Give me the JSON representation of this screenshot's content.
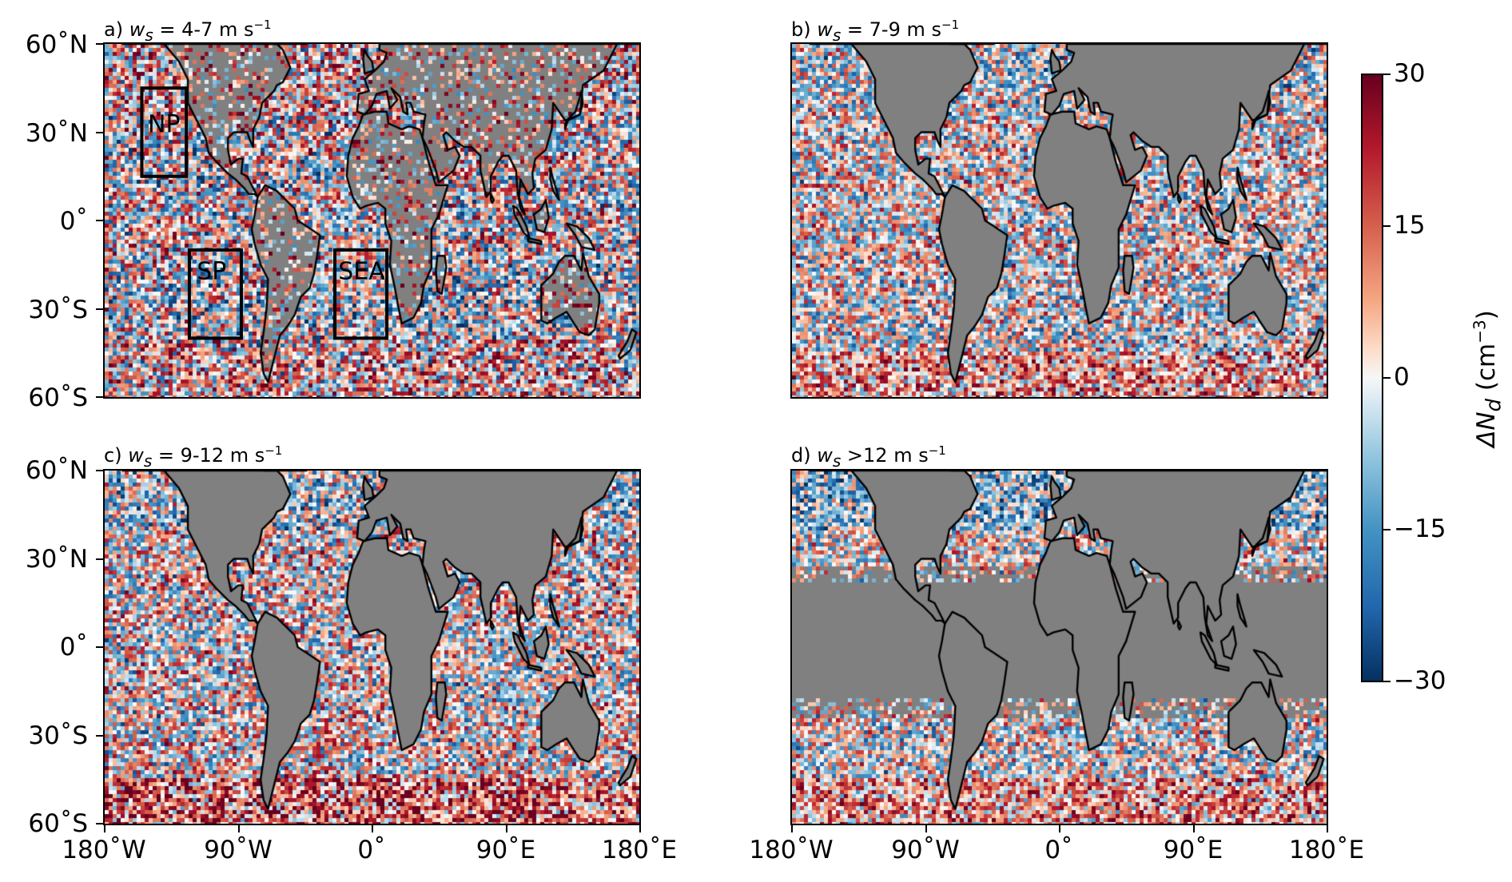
{
  "figure": {
    "panels": [
      {
        "id": "a",
        "title_prefix": "a) ",
        "title_var": "w",
        "title_sub": "s",
        "title_rest": " = 4-7 m s",
        "title_exp": "−1",
        "boxes": [
          "NP",
          "SP",
          "SEA"
        ],
        "land_sampled": true,
        "equatorial_gap": false
      },
      {
        "id": "b",
        "title_prefix": "b) ",
        "title_var": "w",
        "title_sub": "s",
        "title_rest": " = 7-9 m s",
        "title_exp": "−1",
        "boxes": [],
        "land_sampled": false,
        "equatorial_gap": false
      },
      {
        "id": "c",
        "title_prefix": "c) ",
        "title_var": "w",
        "title_sub": "s",
        "title_rest": " = 9-12 m s",
        "title_exp": "−1",
        "boxes": [],
        "land_sampled": false,
        "equatorial_gap": false
      },
      {
        "id": "d",
        "title_prefix": "d) ",
        "title_var": "w",
        "title_sub": "s",
        "title_rest": " >12 m s",
        "title_exp": "−1",
        "boxes": [],
        "land_sampled": false,
        "equatorial_gap": true
      }
    ],
    "lat_ticks": [
      "60˚N",
      "30˚N",
      "0˚",
      "30˚S",
      "60˚S"
    ],
    "lon_ticks": [
      "180˚W",
      "90˚W",
      "0˚",
      "90˚E",
      "180˚E"
    ],
    "box_labels": {
      "NP": "NP",
      "SP": "SP",
      "SEA": "SEA"
    },
    "colorbar": {
      "label_prefix": "ΔN",
      "label_sub": "d",
      "label_units": " (cm",
      "label_exp": "−3",
      "label_close": ")",
      "ticks": [
        "30",
        "15",
        "0",
        "−15",
        "−30"
      ],
      "range": [
        -30,
        30
      ],
      "colormap": "RdBu_r"
    },
    "colors": {
      "land": "#808080",
      "coast": "#000000",
      "box": "#000000"
    }
  }
}
